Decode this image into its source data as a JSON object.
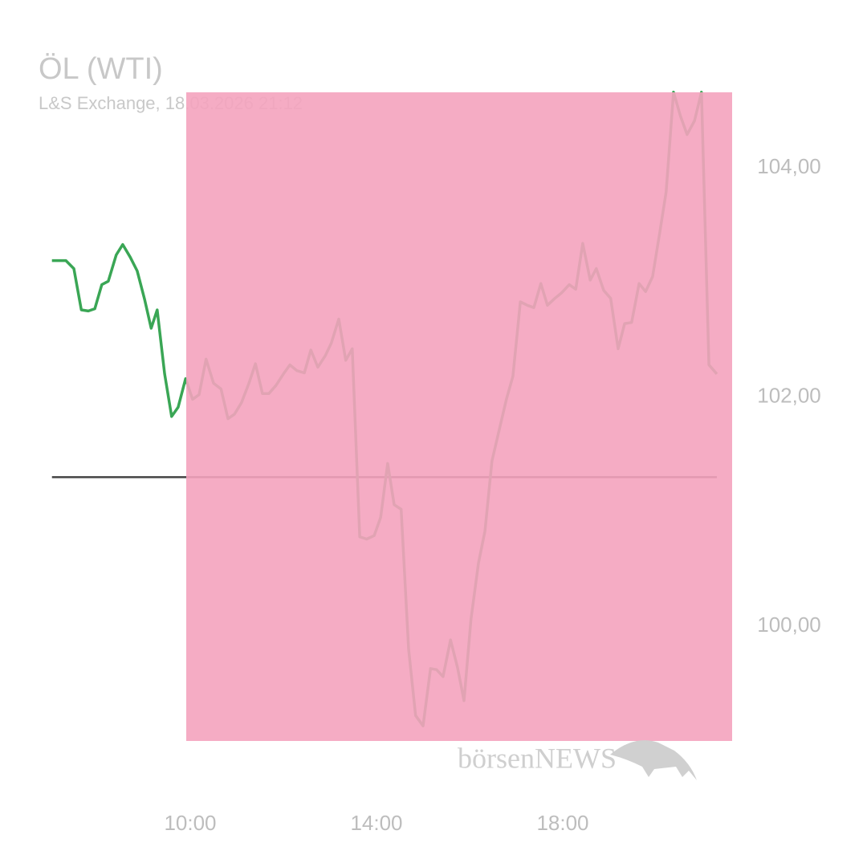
{
  "chart_data": {
    "type": "line",
    "title": "ÖL (WTI)",
    "subtitle": "L&S Exchange, 18.03.2026 21:12",
    "watermark": "börsenNEWS",
    "x": [
      7.03,
      7.33,
      7.5,
      7.66,
      7.81,
      7.95,
      8.1,
      8.24,
      8.41,
      8.55,
      8.71,
      8.86,
      9.02,
      9.16,
      9.29,
      9.45,
      9.6,
      9.74,
      9.9,
      10.05,
      10.19,
      10.34,
      10.5,
      10.66,
      10.81,
      10.95,
      11.1,
      11.26,
      11.4,
      11.55,
      11.69,
      11.84,
      12.0,
      12.14,
      12.29,
      12.45,
      12.59,
      12.74,
      12.9,
      13.03,
      13.19,
      13.34,
      13.48,
      13.64,
      13.79,
      13.95,
      14.09,
      14.24,
      14.38,
      14.53,
      14.69,
      14.84,
      15.0,
      15.16,
      15.29,
      15.43,
      15.59,
      15.74,
      15.88,
      16.03,
      16.19,
      16.33,
      16.48,
      16.64,
      16.79,
      16.93,
      17.09,
      17.24,
      17.38,
      17.53,
      17.67,
      17.83,
      17.98,
      18.14,
      18.28,
      18.43,
      18.59,
      18.72,
      18.88,
      19.03,
      19.19,
      19.33,
      19.48,
      19.64,
      19.78,
      19.93,
      20.09,
      20.22,
      20.38,
      20.53,
      20.67,
      20.83,
      20.98,
      21.14,
      21.31
    ],
    "series": [
      {
        "color": "#3aa655",
        "values": [
          103.19,
          103.19,
          103.12,
          102.76,
          102.75,
          102.77,
          102.98,
          103.01,
          103.24,
          103.33,
          103.22,
          103.1,
          102.85,
          102.6,
          102.76,
          102.2,
          101.83,
          101.91,
          102.16,
          101.98,
          102.02,
          102.33,
          102.12,
          102.07,
          101.81,
          101.85,
          101.95,
          102.12,
          102.29,
          102.03,
          102.03,
          102.1,
          102.2,
          102.28,
          102.23,
          102.21,
          102.41,
          102.26,
          102.36,
          102.47,
          102.68,
          102.32,
          102.42,
          100.78,
          100.76,
          100.79,
          100.95,
          101.42,
          101.06,
          101.02,
          99.8,
          99.22,
          99.13,
          99.63,
          99.62,
          99.56,
          99.88,
          99.64,
          99.35,
          100.06,
          100.55,
          100.83,
          101.44,
          101.72,
          101.98,
          102.18,
          102.83,
          102.8,
          102.78,
          102.99,
          102.8,
          102.86,
          102.91,
          102.98,
          102.94,
          103.34,
          103.02,
          103.12,
          102.93,
          102.86,
          102.42,
          102.64,
          102.65,
          102.99,
          102.92,
          103.05,
          103.45,
          103.79,
          104.66,
          104.45,
          104.29,
          104.41,
          104.66,
          102.28,
          102.2
        ]
      }
    ],
    "reference_line": 101.3,
    "reference_color": "#444444",
    "xlim": [
      7,
      21.5
    ],
    "xticks": [
      {
        "value": 10,
        "label": "10:00"
      },
      {
        "value": 14,
        "label": "14:00"
      },
      {
        "value": 18,
        "label": "18:00"
      }
    ],
    "ylim": [
      98.5,
      105.3
    ],
    "yticks": [
      {
        "value": 100,
        "label": "100,00"
      },
      {
        "value": 102,
        "label": "102,00"
      },
      {
        "value": 104,
        "label": "104,00"
      }
    ],
    "grid": false
  }
}
